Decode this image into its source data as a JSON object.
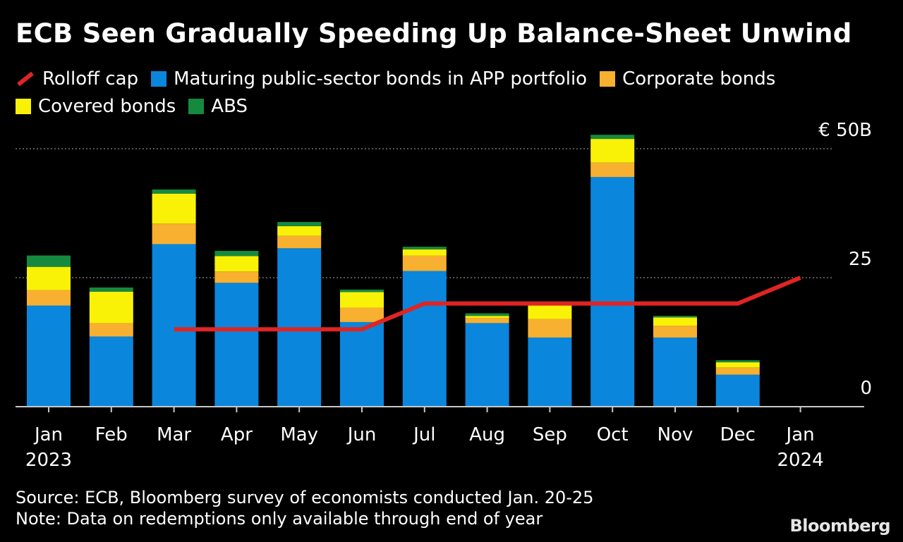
{
  "title": "ECB Seen Gradually Speeding Up Balance-Sheet Unwind",
  "legend": [
    {
      "key": "rolloff",
      "label": "Rolloff cap",
      "color": "#e02424",
      "kind": "line"
    },
    {
      "key": "public",
      "label": "Maturing public-sector bonds in APP portfolio",
      "color": "#0a86dc",
      "kind": "box"
    },
    {
      "key": "corporate",
      "label": "Corporate bonds",
      "color": "#f7b030",
      "kind": "box"
    },
    {
      "key": "covered",
      "label": "Covered bonds",
      "color": "#f9f206",
      "kind": "box"
    },
    {
      "key": "abs",
      "label": "ABS",
      "color": "#158a3e",
      "kind": "box"
    }
  ],
  "source": "Source: ECB, Bloomberg survey of economists conducted Jan. 20-25",
  "note": "Note: Data on redemptions only available through end of year",
  "brand": "Bloomberg",
  "chart_data": {
    "type": "bar",
    "stacked": true,
    "categories": [
      "Jan",
      "Feb",
      "Mar",
      "Apr",
      "May",
      "Jun",
      "Jul",
      "Aug",
      "Sep",
      "Oct",
      "Nov",
      "Dec",
      "Jan"
    ],
    "category_sublabels": [
      "2023",
      "",
      "",
      "",
      "",
      "",
      "",
      "",
      "",
      "",
      "",
      "",
      "2024"
    ],
    "series": [
      {
        "name": "Maturing public-sector bonds in APP portfolio",
        "key": "public",
        "values": [
          19.6,
          13.6,
          31.5,
          24.0,
          30.7,
          16.4,
          26.3,
          16.2,
          13.4,
          44.5,
          13.4,
          6.2,
          null
        ]
      },
      {
        "name": "Corporate bonds",
        "key": "corporate",
        "values": [
          3.0,
          2.6,
          4.0,
          2.2,
          2.4,
          2.8,
          3.0,
          1.0,
          3.6,
          2.8,
          2.3,
          1.4,
          null
        ]
      },
      {
        "name": "Covered bonds",
        "key": "covered",
        "values": [
          4.5,
          6.1,
          5.8,
          3.0,
          1.9,
          3.0,
          1.2,
          0.4,
          2.8,
          4.6,
          1.6,
          1.0,
          null
        ]
      },
      {
        "name": "ABS",
        "key": "abs",
        "values": [
          2.2,
          0.8,
          0.8,
          1.0,
          0.8,
          0.5,
          0.5,
          0.5,
          0.5,
          0.8,
          0.3,
          0.4,
          null
        ]
      }
    ],
    "line": {
      "name": "Rolloff cap",
      "key": "rolloff",
      "values": [
        null,
        null,
        15,
        15,
        15,
        15,
        20,
        20,
        20,
        20,
        20,
        20,
        25
      ]
    },
    "y_ticks": [
      {
        "value": 0,
        "label": "0"
      },
      {
        "value": 25,
        "label": "25"
      },
      {
        "value": 50,
        "label": "€ 50B"
      }
    ],
    "ylim": [
      0,
      50
    ],
    "grid": "dotted at 25 and 50"
  }
}
